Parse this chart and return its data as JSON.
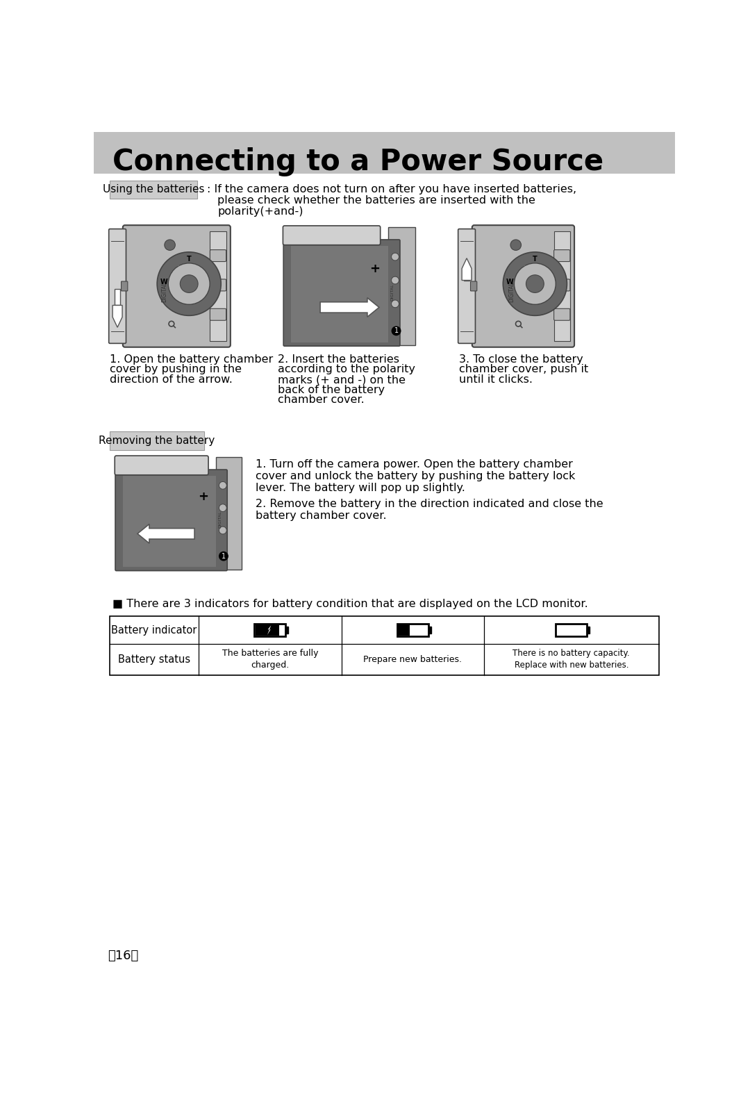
{
  "title": "Connecting to a Power Source",
  "title_fontsize": 30,
  "title_fontweight": "bold",
  "bg_color": "#ffffff",
  "header_bg": "#c0c0c0",
  "section_label_bg": "#cccccc",
  "body_fontsize": 11.5,
  "small_fontsize": 9,
  "section_label_fontsize": 11,
  "page_number": "〈16〉",
  "using_label": "Using the batteries",
  "using_text_line1": ": If the camera does not turn on after you have inserted batteries,",
  "using_text_line2": "please check whether the batteries are inserted with the",
  "using_text_line3": "polarity(+and-)",
  "removing_label": "Removing the battery",
  "step1_title": "1. Open the battery chamber",
  "step1_line2": "cover by pushing in the",
  "step1_line3": "direction of the arrow.",
  "step2_title": "2. Insert the batteries",
  "step2_line2": "according to the polarity",
  "step2_line3": "marks (+ and -) on the",
  "step2_line4": "back of the battery",
  "step2_line5": "chamber cover.",
  "step3_title": "3. To close the battery",
  "step3_line2": "chamber cover, push it",
  "step3_line3": "until it clicks.",
  "remove_step1": "1. Turn off the camera power. Open the battery chamber",
  "remove_step1b": "cover and unlock the battery by pushing the battery lock",
  "remove_step1c": "lever. The battery will pop up slightly.",
  "remove_step2": "2. Remove the battery in the direction indicated and close the",
  "remove_step2b": "battery chamber cover.",
  "indicator_note": "■ There are 3 indicators for battery condition that are displayed on the LCD monitor.",
  "table_col1_label": "Battery indicator",
  "table_col2_label": "Battery status",
  "table_row2_c1": "The batteries are fully\ncharged.",
  "table_row2_c2": "Prepare new batteries.",
  "table_row2_c3": "There is no battery capacity.\nReplace with new batteries.",
  "cam_color": "#b8b8b8",
  "cam_dark": "#888888",
  "cam_edge": "#444444",
  "cam_darker": "#666666",
  "cam_light": "#d0d0d0"
}
